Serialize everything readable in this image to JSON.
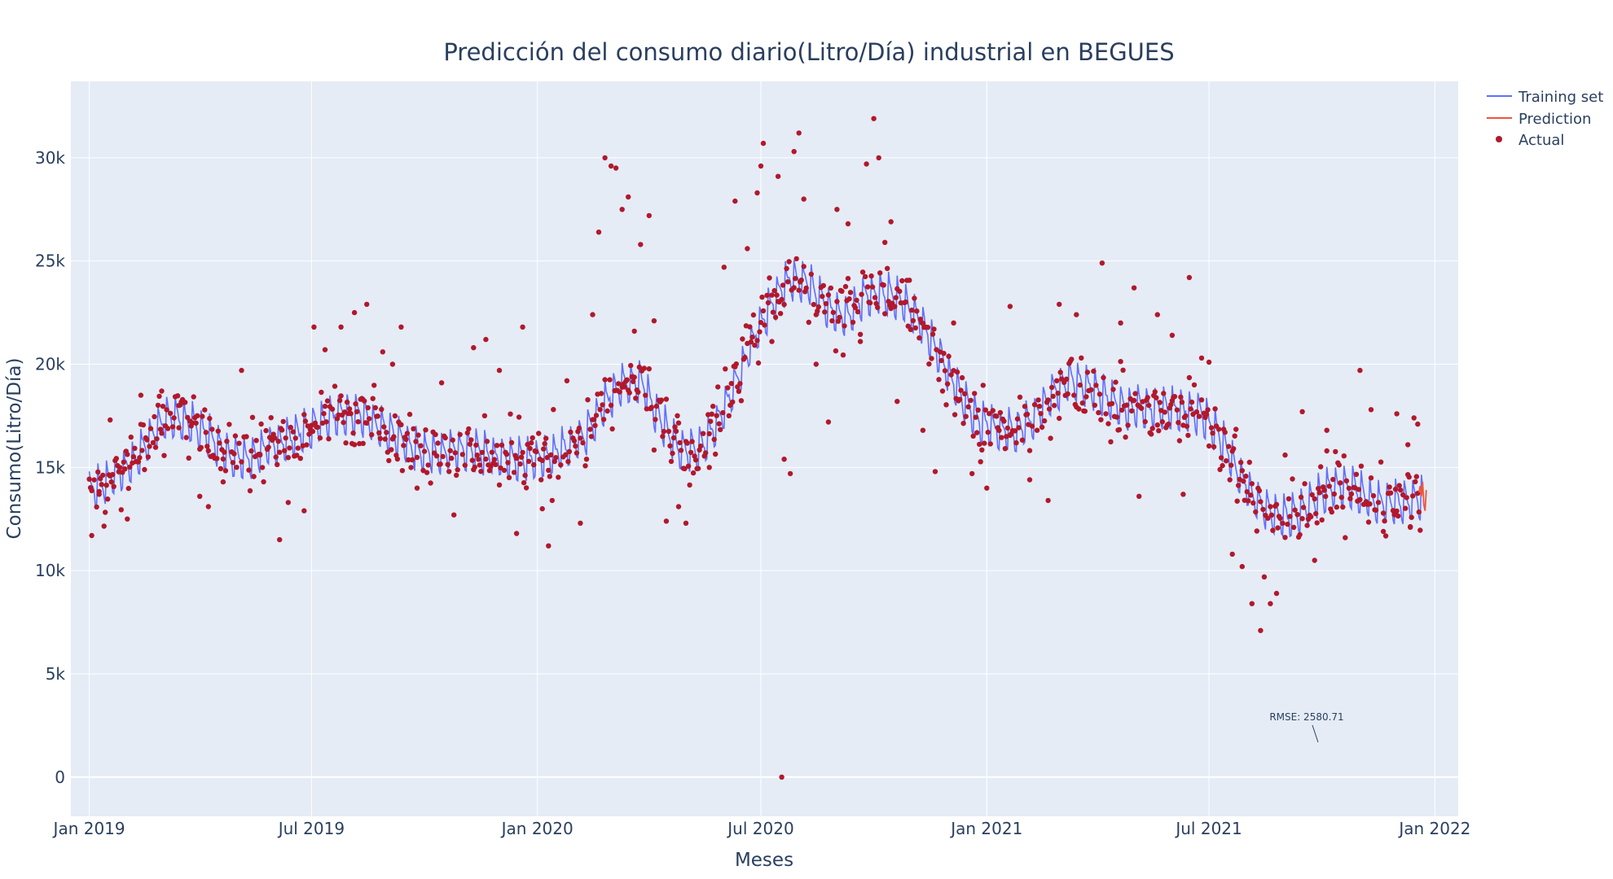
{
  "chart_data": {
    "type": "line",
    "title": "Predicción del consumo diario(Litro/Día) industrial en BEGUES",
    "xlabel": "Meses",
    "ylabel": "Consumo(Litro/Día)",
    "x_tick_labels": [
      "Jan 2019",
      "Jul 2019",
      "Jan 2020",
      "Jul 2020",
      "Jan 2021",
      "Jul 2021",
      "Jan 2022"
    ],
    "x_range": [
      "2018-12-17",
      "2022-01-20"
    ],
    "y_ticks": [
      0,
      5000,
      10000,
      15000,
      20000,
      25000,
      30000
    ],
    "y_tick_labels": [
      "0",
      "5k",
      "10k",
      "15k",
      "20k",
      "25k",
      "30k"
    ],
    "ylim": [
      -1900,
      33700
    ],
    "grid": true,
    "legend_position": "top-right",
    "series": [
      {
        "name": "Training set",
        "mode": "line",
        "color": "#636efa",
        "weekly_amplitude": 1400,
        "points": [
          [
            "2019-01-01",
            13800
          ],
          [
            "2019-01-20",
            14600
          ],
          [
            "2019-02-05",
            15200
          ],
          [
            "2019-02-20",
            16500
          ],
          [
            "2019-03-05",
            17500
          ],
          [
            "2019-03-25",
            17200
          ],
          [
            "2019-04-10",
            16500
          ],
          [
            "2019-04-25",
            15500
          ],
          [
            "2019-05-10",
            15400
          ],
          [
            "2019-05-25",
            16000
          ],
          [
            "2019-06-10",
            16300
          ],
          [
            "2019-06-25",
            16800
          ],
          [
            "2019-07-10",
            17300
          ],
          [
            "2019-07-25",
            17700
          ],
          [
            "2019-08-10",
            17600
          ],
          [
            "2019-08-25",
            17000
          ],
          [
            "2019-09-10",
            16400
          ],
          [
            "2019-09-25",
            15900
          ],
          [
            "2019-10-10",
            15700
          ],
          [
            "2019-10-25",
            15900
          ],
          [
            "2019-11-10",
            15900
          ],
          [
            "2019-11-25",
            15600
          ],
          [
            "2019-12-10",
            15400
          ],
          [
            "2019-12-25",
            15400
          ],
          [
            "2020-01-10",
            15600
          ],
          [
            "2020-01-25",
            16000
          ],
          [
            "2020-02-10",
            16700
          ],
          [
            "2020-02-25",
            18200
          ],
          [
            "2020-03-10",
            19000
          ],
          [
            "2020-03-25",
            19200
          ],
          [
            "2020-04-10",
            17300
          ],
          [
            "2020-04-25",
            16000
          ],
          [
            "2020-05-10",
            15800
          ],
          [
            "2020-05-25",
            17000
          ],
          [
            "2020-06-10",
            19000
          ],
          [
            "2020-06-25",
            21300
          ],
          [
            "2020-07-10",
            23000
          ],
          [
            "2020-07-25",
            24200
          ],
          [
            "2020-08-10",
            23900
          ],
          [
            "2020-08-25",
            22700
          ],
          [
            "2020-09-10",
            22400
          ],
          [
            "2020-09-25",
            23400
          ],
          [
            "2020-10-10",
            23500
          ],
          [
            "2020-10-25",
            23100
          ],
          [
            "2020-11-10",
            21900
          ],
          [
            "2020-11-25",
            20300
          ],
          [
            "2020-12-10",
            18500
          ],
          [
            "2020-12-25",
            17300
          ],
          [
            "2021-01-10",
            16900
          ],
          [
            "2021-01-25",
            16800
          ],
          [
            "2021-02-10",
            17500
          ],
          [
            "2021-02-25",
            18700
          ],
          [
            "2021-03-10",
            19300
          ],
          [
            "2021-03-25",
            19000
          ],
          [
            "2021-04-10",
            18300
          ],
          [
            "2021-04-25",
            17900
          ],
          [
            "2021-05-10",
            17900
          ],
          [
            "2021-05-25",
            17900
          ],
          [
            "2021-06-10",
            17800
          ],
          [
            "2021-06-25",
            17600
          ],
          [
            "2021-07-10",
            16500
          ],
          [
            "2021-07-25",
            14800
          ],
          [
            "2021-08-10",
            13300
          ],
          [
            "2021-08-25",
            12600
          ],
          [
            "2021-09-10",
            12700
          ],
          [
            "2021-09-25",
            13500
          ],
          [
            "2021-10-10",
            14100
          ],
          [
            "2021-10-25",
            14100
          ],
          [
            "2021-11-10",
            13400
          ],
          [
            "2021-11-25",
            13300
          ],
          [
            "2021-12-10",
            13400
          ],
          [
            "2021-12-22",
            13600
          ]
        ]
      },
      {
        "name": "Prediction",
        "mode": "line",
        "color": "#ef553b",
        "points": [
          [
            "2021-12-19",
            13800
          ],
          [
            "2021-12-20",
            14100
          ],
          [
            "2021-12-21",
            13600
          ],
          [
            "2021-12-22",
            14300
          ],
          [
            "2021-12-23",
            13200
          ],
          [
            "2021-12-24",
            12900
          ],
          [
            "2021-12-25",
            13900
          ]
        ]
      },
      {
        "name": "Actual",
        "mode": "markers",
        "color": "#b2182b",
        "points": [
          [
            "2019-01-03",
            11700
          ],
          [
            "2019-01-09",
            13700
          ],
          [
            "2019-01-18",
            17300
          ],
          [
            "2019-02-01",
            12500
          ],
          [
            "2019-02-12",
            18500
          ],
          [
            "2019-03-01",
            18700
          ],
          [
            "2019-03-15",
            18000
          ],
          [
            "2019-04-01",
            13600
          ],
          [
            "2019-04-08",
            13100
          ],
          [
            "2019-04-20",
            14300
          ],
          [
            "2019-05-05",
            19700
          ],
          [
            "2019-05-20",
            15600
          ],
          [
            "2019-06-05",
            11500
          ],
          [
            "2019-06-12",
            13300
          ],
          [
            "2019-06-25",
            12900
          ],
          [
            "2019-07-03",
            21800
          ],
          [
            "2019-07-12",
            20700
          ],
          [
            "2019-07-25",
            21800
          ],
          [
            "2019-08-05",
            22500
          ],
          [
            "2019-08-15",
            22900
          ],
          [
            "2019-08-28",
            20600
          ],
          [
            "2019-09-05",
            20000
          ],
          [
            "2019-09-12",
            21800
          ],
          [
            "2019-09-25",
            14000
          ],
          [
            "2019-10-15",
            19100
          ],
          [
            "2019-10-25",
            12700
          ],
          [
            "2019-11-10",
            20800
          ],
          [
            "2019-11-20",
            21200
          ],
          [
            "2019-12-01",
            19700
          ],
          [
            "2019-12-15",
            11800
          ],
          [
            "2019-12-20",
            21800
          ],
          [
            "2020-01-05",
            13000
          ],
          [
            "2020-01-10",
            11200
          ],
          [
            "2020-01-25",
            19200
          ],
          [
            "2020-02-05",
            12300
          ],
          [
            "2020-02-15",
            22400
          ],
          [
            "2020-02-20",
            26400
          ],
          [
            "2020-02-25",
            30000
          ],
          [
            "2020-03-01",
            29600
          ],
          [
            "2020-03-05",
            29500
          ],
          [
            "2020-03-10",
            27500
          ],
          [
            "2020-03-15",
            28100
          ],
          [
            "2020-03-20",
            21600
          ],
          [
            "2020-03-25",
            25800
          ],
          [
            "2020-04-01",
            27200
          ],
          [
            "2020-04-05",
            22100
          ],
          [
            "2020-04-15",
            12400
          ],
          [
            "2020-04-25",
            13100
          ],
          [
            "2020-05-01",
            12300
          ],
          [
            "2020-05-20",
            15000
          ],
          [
            "2020-06-01",
            24700
          ],
          [
            "2020-06-10",
            27900
          ],
          [
            "2020-06-20",
            25600
          ],
          [
            "2020-06-28",
            28300
          ],
          [
            "2020-07-01",
            29600
          ],
          [
            "2020-07-03",
            30700
          ],
          [
            "2020-07-10",
            21100
          ],
          [
            "2020-07-15",
            29100
          ],
          [
            "2020-07-18",
            0
          ],
          [
            "2020-07-20",
            15400
          ],
          [
            "2020-07-25",
            14700
          ],
          [
            "2020-07-28",
            30300
          ],
          [
            "2020-08-01",
            31200
          ],
          [
            "2020-08-05",
            28000
          ],
          [
            "2020-08-15",
            20000
          ],
          [
            "2020-08-25",
            17200
          ],
          [
            "2020-09-01",
            27500
          ],
          [
            "2020-09-10",
            26800
          ],
          [
            "2020-09-20",
            21100
          ],
          [
            "2020-09-25",
            29700
          ],
          [
            "2020-10-01",
            31900
          ],
          [
            "2020-10-05",
            30000
          ],
          [
            "2020-10-10",
            25900
          ],
          [
            "2020-10-15",
            26900
          ],
          [
            "2020-10-20",
            18200
          ],
          [
            "2020-11-10",
            16800
          ],
          [
            "2020-11-20",
            14800
          ],
          [
            "2020-12-05",
            22000
          ],
          [
            "2020-12-20",
            14700
          ],
          [
            "2021-01-01",
            14000
          ],
          [
            "2021-01-20",
            22800
          ],
          [
            "2021-02-05",
            14400
          ],
          [
            "2021-02-20",
            13400
          ],
          [
            "2021-03-01",
            22900
          ],
          [
            "2021-03-15",
            22400
          ],
          [
            "2021-04-05",
            24900
          ],
          [
            "2021-04-20",
            22000
          ],
          [
            "2021-05-01",
            23700
          ],
          [
            "2021-05-05",
            13600
          ],
          [
            "2021-05-20",
            22400
          ],
          [
            "2021-06-01",
            21400
          ],
          [
            "2021-06-10",
            13700
          ],
          [
            "2021-06-15",
            24200
          ],
          [
            "2021-06-25",
            20300
          ],
          [
            "2021-07-01",
            20100
          ],
          [
            "2021-07-10",
            14900
          ],
          [
            "2021-07-20",
            10800
          ],
          [
            "2021-07-28",
            10200
          ],
          [
            "2021-08-05",
            8400
          ],
          [
            "2021-08-12",
            7100
          ],
          [
            "2021-08-15",
            9700
          ],
          [
            "2021-08-20",
            8400
          ],
          [
            "2021-08-25",
            8900
          ],
          [
            "2021-09-01",
            15600
          ],
          [
            "2021-09-15",
            17700
          ],
          [
            "2021-09-25",
            10500
          ],
          [
            "2021-10-05",
            16800
          ],
          [
            "2021-10-20",
            11600
          ],
          [
            "2021-11-01",
            19700
          ],
          [
            "2021-11-10",
            17800
          ],
          [
            "2021-11-20",
            11900
          ],
          [
            "2021-12-01",
            17600
          ],
          [
            "2021-12-10",
            16100
          ],
          [
            "2021-12-15",
            17400
          ],
          [
            "2021-12-18",
            17100
          ],
          [
            "2021-12-12",
            12100
          ]
        ],
        "scatter_spread": 1300
      }
    ],
    "annotations": [
      {
        "text": "RMSE: 2580.71",
        "x": "2021-10-10",
        "y": 1200
      }
    ]
  }
}
